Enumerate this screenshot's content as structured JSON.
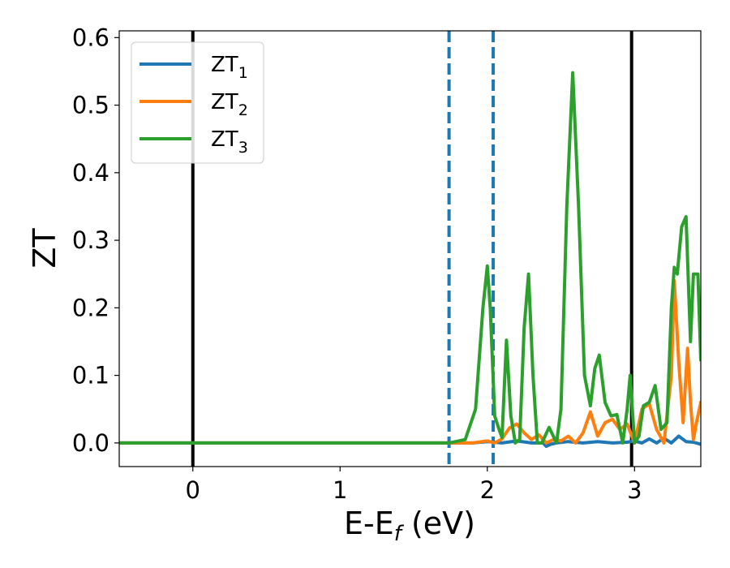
{
  "chart_data": {
    "type": "line",
    "title": "",
    "xlabel": "E-E",
    "xlabel_sub": "f",
    "xlabel_unit": " (eV)",
    "ylabel": "ZT",
    "xlim": [
      -0.5,
      3.45
    ],
    "ylim": [
      -0.035,
      0.61
    ],
    "xticks": [
      0,
      1,
      2,
      3
    ],
    "xtick_labels": [
      "0",
      "1",
      "2",
      "3"
    ],
    "yticks": [
      0.0,
      0.1,
      0.2,
      0.3,
      0.4,
      0.5,
      0.6
    ],
    "ytick_labels": [
      "0.0",
      "0.1",
      "0.2",
      "0.3",
      "0.4",
      "0.5",
      "0.6"
    ],
    "grid": false,
    "legend_position": "top-left",
    "vlines_solid": [
      0.0,
      2.98
    ],
    "vlines_dashed": [
      1.74,
      2.04
    ],
    "vline_solid_color": "#000000",
    "vline_dashed_color": "#1f77b4",
    "series": [
      {
        "name": "ZT",
        "name_sub": "1",
        "color": "#1f77b4",
        "x": [
          -0.5,
          1.9,
          2.0,
          2.1,
          2.2,
          2.3,
          2.38,
          2.4,
          2.43,
          2.47,
          2.55,
          2.65,
          2.75,
          2.85,
          2.95,
          3.0,
          3.05,
          3.1,
          3.15,
          3.2,
          3.25,
          3.3,
          3.35,
          3.4,
          3.45
        ],
        "y": [
          0.0,
          0.0,
          0.002,
          0.0,
          0.003,
          0.0,
          0.0,
          -0.005,
          -0.002,
          0.0,
          0.002,
          0.0,
          0.002,
          0.0,
          0.001,
          0.003,
          0.0,
          0.006,
          0.0,
          0.007,
          0.0,
          0.01,
          0.002,
          0.001,
          -0.002
        ]
      },
      {
        "name": "ZT",
        "name_sub": "2",
        "color": "#ff7f0e",
        "x": [
          -0.5,
          1.74,
          1.9,
          2.0,
          2.05,
          2.1,
          2.15,
          2.2,
          2.25,
          2.3,
          2.35,
          2.4,
          2.45,
          2.5,
          2.55,
          2.6,
          2.65,
          2.7,
          2.75,
          2.8,
          2.85,
          2.9,
          2.95,
          3.0,
          3.05,
          3.1,
          3.15,
          3.2,
          3.25,
          3.27,
          3.3,
          3.33,
          3.36,
          3.38,
          3.4,
          3.42,
          3.45
        ],
        "y": [
          0.0,
          0.0,
          0.0,
          0.003,
          0.0,
          0.006,
          0.022,
          0.028,
          0.015,
          0.005,
          0.012,
          0.0,
          0.005,
          0.003,
          0.01,
          0.0,
          0.015,
          0.046,
          0.01,
          0.03,
          0.035,
          0.02,
          0.028,
          0.0,
          0.05,
          0.058,
          0.02,
          0.0,
          0.1,
          0.24,
          0.12,
          0.03,
          0.14,
          0.06,
          0.005,
          0.03,
          0.06
        ]
      },
      {
        "name": "ZT",
        "name_sub": "3",
        "color": "#2ca02c",
        "x": [
          -0.5,
          1.74,
          1.85,
          1.92,
          1.97,
          2.0,
          2.02,
          2.05,
          2.08,
          2.1,
          2.13,
          2.16,
          2.19,
          2.22,
          2.25,
          2.28,
          2.31,
          2.34,
          2.37,
          2.42,
          2.47,
          2.5,
          2.54,
          2.58,
          2.62,
          2.66,
          2.7,
          2.73,
          2.76,
          2.8,
          2.84,
          2.88,
          2.92,
          2.95,
          2.97,
          3.0,
          3.03,
          3.06,
          3.1,
          3.14,
          3.18,
          3.22,
          3.25,
          3.27,
          3.29,
          3.32,
          3.35,
          3.38,
          3.4,
          3.43,
          3.45
        ],
        "y": [
          0.0,
          0.0,
          0.005,
          0.05,
          0.2,
          0.262,
          0.2,
          0.04,
          0.02,
          0.008,
          0.152,
          0.04,
          0.0,
          0.005,
          0.17,
          0.25,
          0.1,
          0.0,
          0.0,
          0.023,
          0.0,
          0.05,
          0.35,
          0.548,
          0.35,
          0.1,
          0.055,
          0.11,
          0.13,
          0.06,
          0.04,
          0.042,
          0.0,
          0.05,
          0.1,
          0.0,
          0.01,
          0.055,
          0.06,
          0.085,
          0.02,
          0.03,
          0.2,
          0.26,
          0.25,
          0.32,
          0.335,
          0.15,
          0.25,
          0.25,
          0.123
        ]
      }
    ]
  }
}
